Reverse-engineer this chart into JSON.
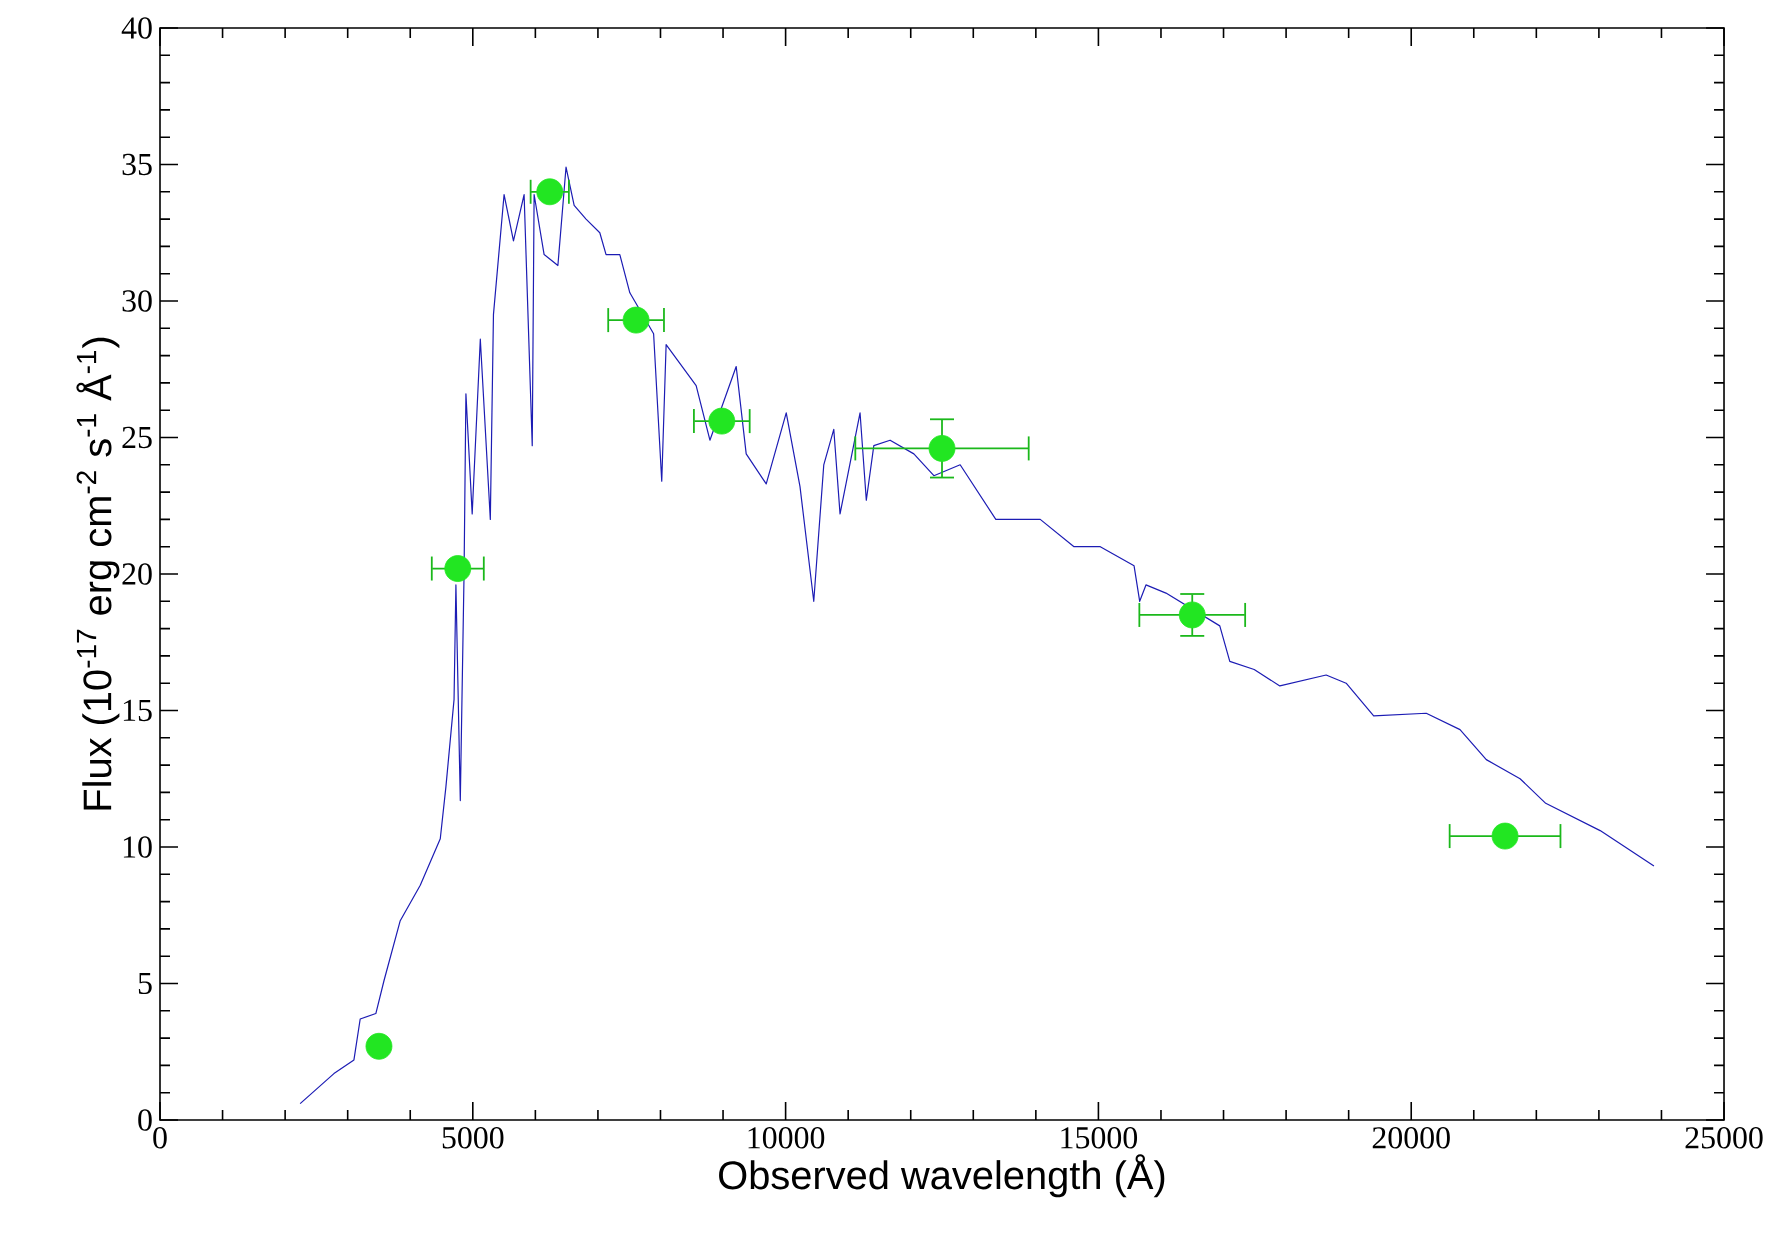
{
  "chart_data": {
    "type": "line",
    "xlabel": "Observed wavelength (Å)",
    "ylabel": "Flux (10$^{-17}$ erg cm$^{-2}$ s$^{-1}$ Å$^{-1}$)",
    "xlim": [
      0,
      25000
    ],
    "xticks": [
      0,
      5000,
      10000,
      15000,
      20000,
      25000
    ],
    "ylim": [
      0,
      40
    ],
    "yticks": [
      0,
      5,
      10,
      15,
      20,
      25,
      30,
      35,
      40
    ],
    "series": [
      {
        "color": "#1c1cb4",
        "marker": "none",
        "line_style": "solid",
        "x": [
          2240,
          2780,
          3100,
          3200,
          3450,
          3580,
          3840,
          4160,
          4480,
          4570,
          4700,
          4730,
          4800,
          4860,
          4890,
          4990,
          5120,
          5280,
          5330,
          5500,
          5650,
          5820,
          5950,
          5980,
          6140,
          6360,
          6490,
          6620,
          6810,
          7030,
          7130,
          7350,
          7510,
          7890,
          8020,
          8090,
          8570,
          8790,
          9210,
          9370,
          9690,
          10010,
          10230,
          10450,
          10610,
          10770,
          10870,
          11190,
          11290,
          11410,
          11670,
          12050,
          12370,
          12790,
          13360,
          14070,
          14610,
          15030,
          15570,
          15660,
          15760,
          16080,
          16940,
          17100,
          17490,
          17900,
          18640,
          18960,
          19400,
          20240,
          20780,
          21200,
          21740,
          22150,
          23020,
          23880
        ],
        "values": [
          0.6,
          1.7,
          2.2,
          3.7,
          3.9,
          5.1,
          7.3,
          8.6,
          10.3,
          12.2,
          15.4,
          19.6,
          11.7,
          20.0,
          26.6,
          22.2,
          28.6,
          22.0,
          29.5,
          33.9,
          32.2,
          33.9,
          24.7,
          33.9,
          31.7,
          31.3,
          34.9,
          33.5,
          33.0,
          32.5,
          31.7,
          31.7,
          30.3,
          28.8,
          23.4,
          28.4,
          26.9,
          24.9,
          27.6,
          24.4,
          23.3,
          25.9,
          23.2,
          19.0,
          24.0,
          25.3,
          22.2,
          25.9,
          22.7,
          24.7,
          24.9,
          24.4,
          23.6,
          24.0,
          22.0,
          22.0,
          21.0,
          21.0,
          20.3,
          19.0,
          19.6,
          19.3,
          18.1,
          16.8,
          16.5,
          15.9,
          16.3,
          16.0,
          14.8,
          14.9,
          14.3,
          13.2,
          12.5,
          11.6,
          10.6,
          9.3
        ]
      },
      {
        "type": "scatter",
        "color": "#22e622",
        "marker": "circle",
        "x": [
          3500,
          4760,
          6230,
          7610,
          8980,
          12500,
          16500,
          21500
        ],
        "values": [
          2.7,
          20.2,
          34.0,
          29.3,
          25.6,
          24.6,
          18.5,
          10.4
        ],
        "errors": [
          null,
          null,
          null,
          null,
          null,
          1.1,
          0.8,
          null
        ],
        "xerrors": [
          null,
          430,
          320,
          460,
          460,
          1400,
          860,
          900
        ]
      }
    ]
  }
}
